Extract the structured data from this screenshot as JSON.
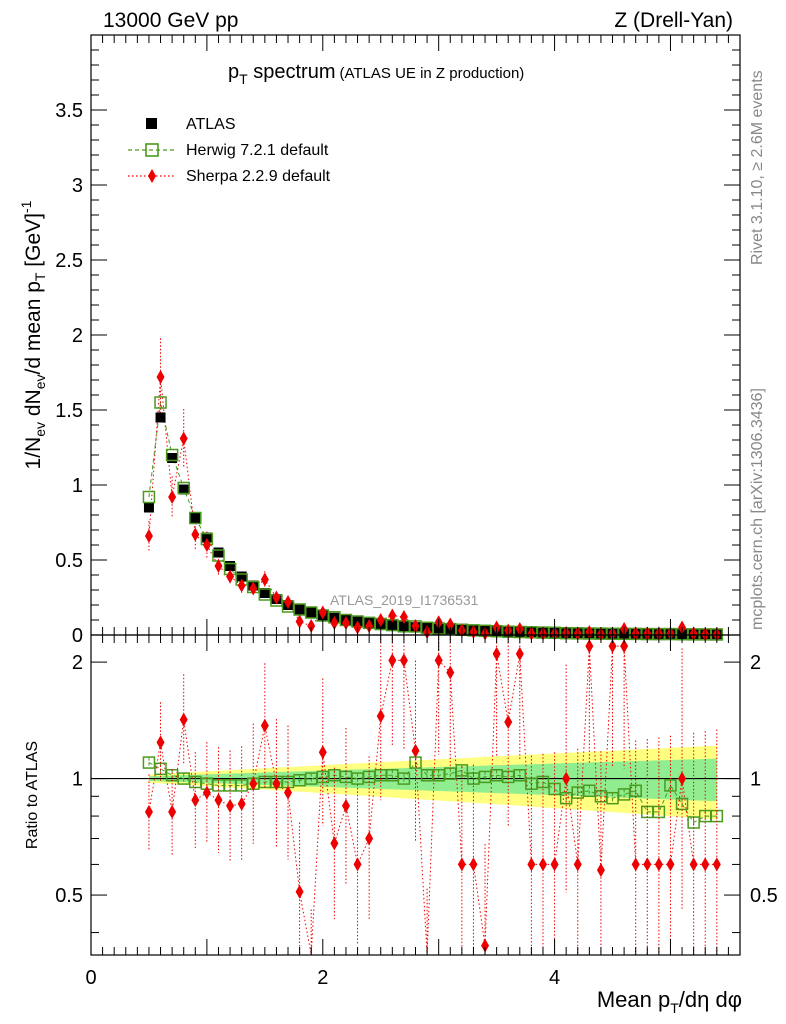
{
  "header": {
    "energy_label": "13000 GeV pp",
    "process_label": "Z (Drell-Yan)"
  },
  "side": {
    "rivet": "Rivet 3.1.10, ≥ 2.6M events",
    "mcplots": "mcplots.cern.ch [arXiv:1306.3436]"
  },
  "colors": {
    "atlas": "#000000",
    "herwig": "#4a9a1e",
    "sherpa": "#ee0000",
    "band_outer": "#ffff80",
    "band_inner": "#90ee90"
  },
  "chart_data": {
    "type": "scatter",
    "title_main": "p",
    "title_sub": "T",
    "title_word": " spectrum",
    "title_note": "(ATLAS UE in Z production)",
    "watermark": "ATLAS_2019_I1736531",
    "ylabel": "1/N_ev dN_ev/d mean p_T [GeV]^-1",
    "ylabel_parts": {
      "a": "1/N",
      "b": "ev",
      "c": " dN",
      "d": "ev",
      "e": "/d mean p",
      "f": "T",
      "g": " [GeV]",
      "h": "-1"
    },
    "ratio_ylabel": "Ratio to ATLAS",
    "xlabel_parts": {
      "a": "Mean p",
      "b": "T",
      "c": "/dη dφ"
    },
    "xlim": [
      0,
      5.6
    ],
    "ylim": [
      0,
      4.0
    ],
    "ratio_ylim": [
      0.35,
      2.35
    ],
    "x_ticks": [
      "0",
      "2",
      "4"
    ],
    "y_ticks": [
      "0",
      "0.5",
      "1",
      "1.5",
      "2",
      "2.5",
      "3",
      "3.5"
    ],
    "ratio_ticks": [
      "0.5",
      "1",
      "2"
    ],
    "legend": [
      {
        "name": "ATLAS",
        "marker": "square-filled"
      },
      {
        "name": "Herwig 7.2.1 default",
        "marker": "square-open"
      },
      {
        "name": "Sherpa 2.2.9 default",
        "marker": "diamond"
      }
    ],
    "x": [
      0.5,
      0.6,
      0.7,
      0.8,
      0.9,
      1.0,
      1.1,
      1.2,
      1.3,
      1.4,
      1.5,
      1.6,
      1.7,
      1.8,
      1.9,
      2.0,
      2.1,
      2.2,
      2.3,
      2.4,
      2.5,
      2.6,
      2.7,
      2.8,
      2.9,
      3.0,
      3.1,
      3.2,
      3.3,
      3.4,
      3.5,
      3.6,
      3.7,
      3.8,
      3.9,
      4.0,
      4.1,
      4.2,
      4.3,
      4.4,
      4.5,
      4.6,
      4.7,
      4.8,
      4.9,
      5.0,
      5.1,
      5.2,
      5.3,
      5.4
    ],
    "series": [
      {
        "name": "ATLAS",
        "values": [
          0.85,
          1.45,
          1.18,
          0.97,
          0.78,
          0.65,
          0.55,
          0.46,
          0.39,
          0.33,
          0.28,
          0.24,
          0.2,
          0.17,
          0.15,
          0.13,
          0.115,
          0.1,
          0.09,
          0.08,
          0.072,
          0.065,
          0.058,
          0.052,
          0.047,
          0.042,
          0.038,
          0.034,
          0.031,
          0.028,
          0.025,
          0.022,
          0.02,
          0.018,
          0.016,
          0.015,
          0.013,
          0.012,
          0.011,
          0.01,
          0.009,
          0.0085,
          0.008,
          0.0075,
          0.007,
          0.0065,
          0.006,
          0.0055,
          0.005,
          0.0045
        ]
      },
      {
        "name": "Herwig 7.2.1 default",
        "values": [
          0.92,
          1.55,
          1.2,
          0.98,
          0.78,
          0.64,
          0.53,
          0.44,
          0.37,
          0.32,
          0.27,
          0.23,
          0.19,
          0.17,
          0.15,
          0.13,
          0.118,
          0.1,
          0.09,
          0.081,
          0.073,
          0.066,
          0.058,
          0.057,
          0.048,
          0.043,
          0.039,
          0.035,
          0.031,
          0.028,
          0.025,
          0.022,
          0.02,
          0.018,
          0.016,
          0.015,
          0.012,
          0.011,
          0.01,
          0.009,
          0.008,
          0.0078,
          0.0074,
          0.0062,
          0.0058,
          0.0063,
          0.0052,
          0.0043,
          0.004,
          0.0036
        ],
        "ratio": [
          1.1,
          1.06,
          1.02,
          1.0,
          0.98,
          0.97,
          0.96,
          0.96,
          0.96,
          0.97,
          0.98,
          0.98,
          0.98,
          0.99,
          1.0,
          1.01,
          1.02,
          1.01,
          1.0,
          1.01,
          1.02,
          1.02,
          1.0,
          1.1,
          1.02,
          1.02,
          1.03,
          1.05,
          1.0,
          1.01,
          1.02,
          1.01,
          1.02,
          0.97,
          0.98,
          0.94,
          0.89,
          0.92,
          0.93,
          0.9,
          0.89,
          0.91,
          0.93,
          0.82,
          0.82,
          0.96,
          0.86,
          0.77,
          0.8,
          0.8
        ]
      },
      {
        "name": "Sherpa 2.2.9 default",
        "values": [
          0.66,
          1.72,
          0.92,
          1.31,
          0.67,
          0.6,
          0.46,
          0.39,
          0.33,
          0.31,
          0.37,
          0.25,
          0.22,
          0.09,
          0.06,
          0.15,
          0.08,
          0.08,
          0.05,
          0.06,
          0.1,
          0.13,
          0.12,
          0.06,
          0.02,
          0.085,
          0.07,
          0.03,
          0.02,
          0.01,
          0.05,
          0.03,
          0.04,
          0.01,
          0.01,
          0.01,
          0.013,
          0.01,
          0.02,
          0.006,
          0.01,
          0.04,
          0.01,
          0.01,
          0.01,
          0.01,
          0.05,
          0.01,
          0.005,
          0.005
        ],
        "ratio": [
          0.82,
          1.24,
          0.82,
          1.42,
          0.88,
          0.92,
          0.88,
          0.85,
          0.86,
          0.97,
          1.37,
          0.97,
          0.92,
          0.51,
          0.3,
          1.17,
          0.68,
          0.85,
          0.6,
          0.7,
          1.45,
          2.02,
          2.02,
          1.18,
          0.3,
          2.02,
          1.88,
          0.6,
          0.6,
          0.37,
          2.1,
          1.4,
          2.1,
          0.6,
          0.6,
          0.6,
          1.0,
          0.6,
          2.2,
          0.58,
          2.2,
          2.2,
          0.6,
          0.6,
          0.6,
          0.6,
          1.0,
          0.6,
          0.6,
          0.6
        ]
      }
    ]
  }
}
